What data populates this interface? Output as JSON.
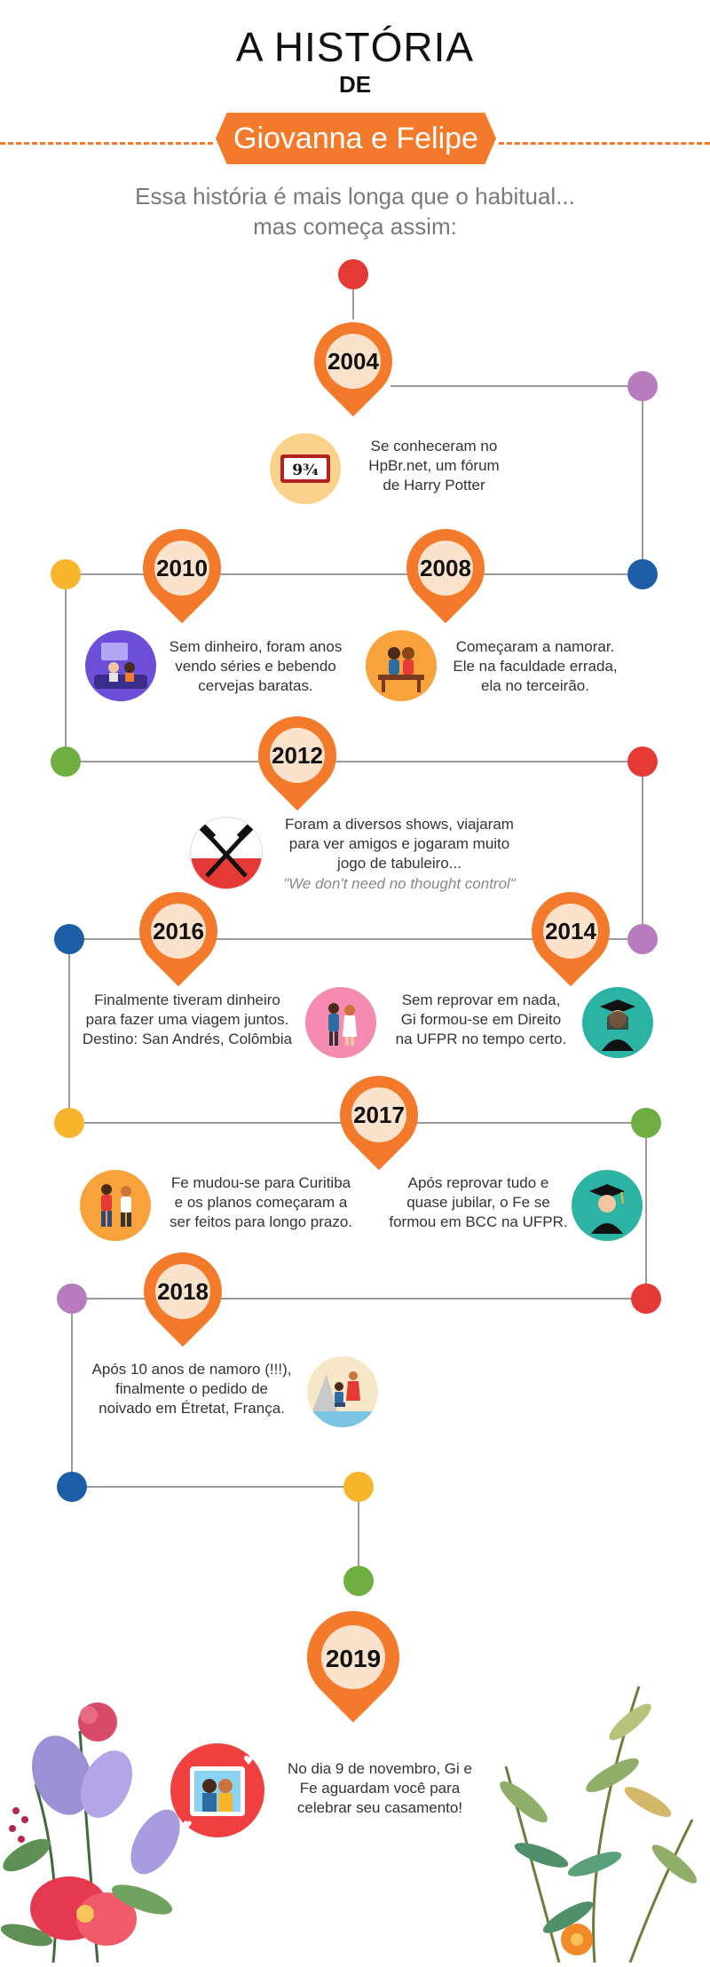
{
  "header": {
    "title": "A HISTÓRIA",
    "subtitle": "DE",
    "couple": "Giovanna e Felipe",
    "intro_line1": "Essa história é mais longa que o habitual...",
    "intro_line2": "mas começa assim:"
  },
  "colors": {
    "accent": "#f47a2b",
    "pin_inner": "#fbe2cc",
    "red": "#e53935",
    "purple": "#b87bbd",
    "blue": "#1c5ea8",
    "yellow": "#f7b52b",
    "green": "#6fae43"
  },
  "events": [
    {
      "year": "2004",
      "lines": [
        "Se conheceram no",
        "HpBr.net, um fórum",
        "de Harry Potter"
      ],
      "icon": "platform-nine-three-quarters-icon"
    },
    {
      "year": "2008",
      "lines": [
        "Começaram a namorar.",
        "Ele na faculdade errada,",
        "ela no terceirão."
      ],
      "icon": "couple-on-bench-icon"
    },
    {
      "year": "2010",
      "lines": [
        "Sem dinheiro, foram anos",
        "vendo séries e bebendo",
        "cervejas baratas."
      ],
      "icon": "couple-watching-tv-icon"
    },
    {
      "year": "2012",
      "lines": [
        "Foram a diversos shows, viajaram",
        "para ver amigos e jogaram muito",
        "jogo de tabuleiro..."
      ],
      "quote": "\"We don't need no thought control\"",
      "icon": "crossed-hammers-icon"
    },
    {
      "year": "2014",
      "lines": [
        "Sem reprovar em nada,",
        "Gi formou-se em Direito",
        "na UFPR no tempo certo."
      ],
      "icon": "female-graduate-icon"
    },
    {
      "year": "2016",
      "lines": [
        "Finalmente tiveram dinheiro",
        "para fazer uma viagem juntos.",
        "Destino: San Andrés, Colômbia"
      ],
      "icon": "couple-travel-icon"
    },
    {
      "year": "2017",
      "lines_left": [
        "Fe mudou-se para Curitiba",
        "e os planos começaram a",
        "ser feitos para longo prazo."
      ],
      "lines_right": [
        "Após reprovar tudo e",
        "quase jubilar, o Fe se",
        "formou em BCC na UFPR."
      ],
      "icon_left": "couple-moving-icon",
      "icon_right": "male-graduate-icon"
    },
    {
      "year": "2018",
      "lines": [
        "Após 10 anos de namoro (!!!),",
        "finalmente o pedido de",
        "noivado em Étretat, França."
      ],
      "icon": "proposal-icon"
    },
    {
      "year": "2019",
      "lines": [
        "No dia 9 de novembro, Gi e",
        "Fe aguardam você para",
        "celebrar seu casamento!"
      ],
      "icon": "couple-photo-hearts-icon"
    }
  ]
}
